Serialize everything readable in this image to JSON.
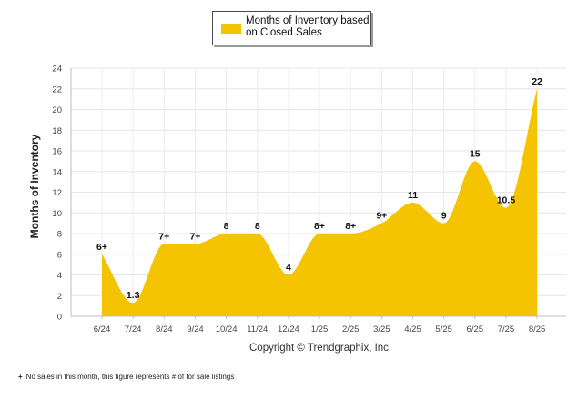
{
  "legend": {
    "label": "Months of Inventory based on Closed Sales",
    "color": "#F5C400"
  },
  "copyright": "Copyright © Trendgraphix, Inc.",
  "footnote": {
    "mark": "+",
    "text": "No sales in this month, this figure represents # of for sale listings"
  },
  "chart_data": {
    "type": "area",
    "title": "",
    "xlabel": "",
    "ylabel": "Months of Inventory",
    "ylim": [
      0,
      24
    ],
    "yticks": [
      0,
      2,
      4,
      6,
      8,
      10,
      12,
      14,
      16,
      18,
      20,
      22,
      24
    ],
    "grid": true,
    "legend_position": "top-center",
    "categories": [
      "6/24",
      "7/24",
      "8/24",
      "9/24",
      "10/24",
      "11/24",
      "12/24",
      "1/25",
      "2/25",
      "3/25",
      "4/25",
      "5/25",
      "6/25",
      "7/25",
      "8/25"
    ],
    "series": [
      {
        "name": "Months of Inventory based on Closed Sales",
        "color": "#F5C400",
        "values": [
          6,
          1.3,
          7,
          7,
          8,
          8,
          4,
          8,
          8,
          9,
          11,
          9,
          15,
          10.5,
          22
        ],
        "labels": [
          "6+",
          "1.3",
          "7+",
          "7+",
          "8",
          "8",
          "4",
          "8+",
          "8+",
          "9+",
          "11",
          "9",
          "15",
          "10.5",
          "22"
        ]
      }
    ]
  }
}
